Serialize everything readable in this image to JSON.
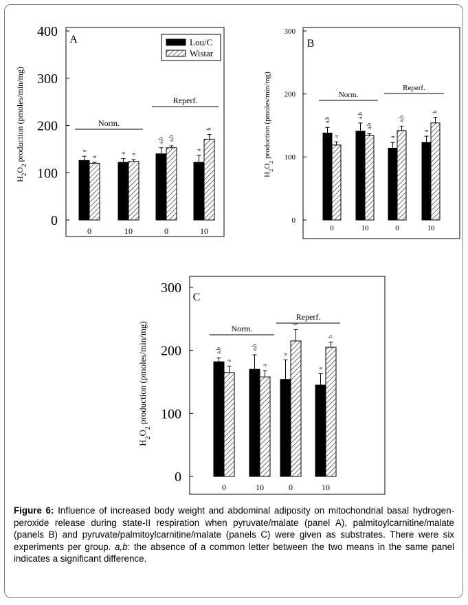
{
  "chart_data": [
    {
      "type": "bar",
      "panel_label": "A",
      "ylabel": "H2O2 production (pmoles/min/mg)",
      "ylim": [
        0,
        400
      ],
      "yticks": [
        0,
        100,
        200,
        300,
        400
      ],
      "categories": [
        "0",
        "10",
        "0",
        "10"
      ],
      "series": [
        {
          "name": "Lou/C",
          "values": [
            126,
            122,
            140,
            122
          ],
          "errors": [
            9,
            8,
            13,
            15
          ],
          "letters": [
            "a",
            "a",
            "a,b",
            "a"
          ]
        },
        {
          "name": "Wistar",
          "values": [
            120,
            124,
            153,
            171
          ],
          "errors": [
            2,
            4,
            4,
            10
          ],
          "letters": [
            "a",
            "a",
            "a,b",
            "b"
          ]
        }
      ],
      "groups": [
        {
          "label": "Norm."
        },
        {
          "label": "Reperf."
        }
      ],
      "legend": "top-right",
      "grid": false
    },
    {
      "type": "bar",
      "panel_label": "B",
      "ylabel": "H2O2 production (pmoles/min/mg)",
      "ylim": [
        0,
        300
      ],
      "yticks": [
        0,
        100,
        200,
        300
      ],
      "categories": [
        "0",
        "10",
        "0",
        "10"
      ],
      "series": [
        {
          "name": "Lou/C",
          "values": [
            138,
            141,
            114,
            123
          ],
          "errors": [
            9,
            13,
            9,
            10
          ],
          "letters": [
            "a,b",
            "a,b",
            "a",
            "a"
          ]
        },
        {
          "name": "Wistar",
          "values": [
            119,
            134,
            142,
            154
          ],
          "errors": [
            5,
            3,
            7,
            9
          ],
          "letters": [
            "a",
            "a,b",
            "a,b",
            "b"
          ]
        }
      ],
      "groups": [
        {
          "label": "Norm."
        },
        {
          "label": "Reperf."
        }
      ],
      "grid": false
    },
    {
      "type": "bar",
      "panel_label": "C",
      "ylabel": "H2O2 production (pmoles/min/mg)",
      "ylim": [
        0,
        300
      ],
      "yticks": [
        0,
        100,
        200,
        300
      ],
      "categories": [
        "0",
        "10",
        "0",
        "10"
      ],
      "series": [
        {
          "name": "Lou/C",
          "values": [
            182,
            170,
            154,
            145
          ],
          "errors": [
            6,
            23,
            31,
            18
          ],
          "letters": [
            "a,b",
            "a,b",
            "a",
            "a"
          ]
        },
        {
          "name": "Wistar",
          "values": [
            165,
            158,
            215,
            205
          ],
          "errors": [
            10,
            10,
            18,
            8
          ],
          "letters": [
            "a",
            "a",
            "b",
            "b"
          ]
        }
      ],
      "groups": [
        {
          "label": "Norm."
        },
        {
          "label": "Reperf."
        }
      ],
      "grid": false
    }
  ],
  "caption": {
    "label": "Figure 6:",
    "text1": " Influence of increased body weight and abdominal adiposity on mitochondrial basal hydrogen-peroxide release during state-II respiration when pyruvate/malate (panel A), palmitoylcarnitine/malate (panels B) and pyruvate/palmitoylcarnitine/malate (panels C) were given as substrates. There were six experiments per group. ",
    "italic": "a,b",
    "text2": ": the absence of a common letter between the two means in the same panel indicates a significant difference."
  }
}
